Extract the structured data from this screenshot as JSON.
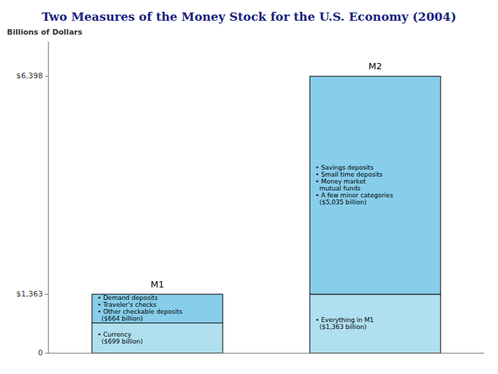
{
  "chart_data": {
    "type": "bar",
    "stacked": true,
    "title": "Two Measures of the Money Stock for the U.S. Economy (2004)",
    "y_label": "Billions of Dollars",
    "categories": [
      "M1",
      "M2"
    ],
    "series": [
      {
        "color": "#b0dff0",
        "values": [
          699,
          1363
        ]
      },
      {
        "color": "#87CEEB",
        "values": [
          664,
          5035
        ]
      }
    ],
    "annotations": [
      "• Currency\n  ($699 billion)",
      "• Demand deposits\n• Traveler's checks\n• Other checkable deposits\n  ($664 billion)",
      "• Everything in M1\n  ($1,363 billion)",
      "• Savings deposits\n• Small time deposits\n• Money market\n  mutual funds\n• A few minor categories\n  ($5,035 billion)"
    ],
    "ylim": [
      0,
      7200
    ],
    "yticks": [
      0,
      {
        "value": 1363,
        "label": "$1,363"
      },
      {
        "value": 6398,
        "label": "$6,398"
      }
    ],
    "grid": false
  }
}
